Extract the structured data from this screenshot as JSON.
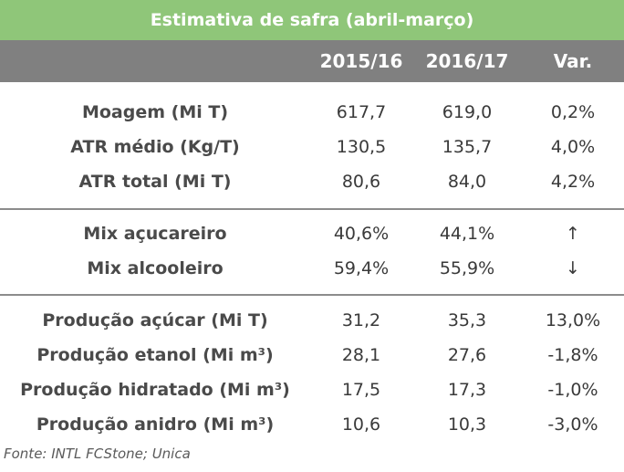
{
  "title": "Estimativa de safra (abril-março)",
  "header": {
    "label": "",
    "col1": "2015/16",
    "col2": "2016/17",
    "col3": "Var."
  },
  "groups": [
    {
      "rows": [
        {
          "label": "Moagem (Mi T)",
          "v1": "617,7",
          "v2": "619,0",
          "var": "0,2%"
        },
        {
          "label": "ATR médio (Kg/T)",
          "v1": "130,5",
          "v2": "135,7",
          "var": "4,0%"
        },
        {
          "label": "ATR total (Mi T)",
          "v1": "80,6",
          "v2": "84,0",
          "var": "4,2%"
        }
      ]
    },
    {
      "rows": [
        {
          "label": "Mix açucareiro",
          "v1": "40,6%",
          "v2": "44,1%",
          "var": "↑"
        },
        {
          "label": "Mix alcooleiro",
          "v1": "59,4%",
          "v2": "55,9%",
          "var": "↓"
        }
      ]
    },
    {
      "rows": [
        {
          "label": "Produção açúcar (Mi T)",
          "v1": "31,2",
          "v2": "35,3",
          "var": "13,0%"
        },
        {
          "label": "Produção etanol (Mi m³)",
          "v1": "28,1",
          "v2": "27,6",
          "var": "-1,8%"
        },
        {
          "label": "Produção hidratado (Mi m³)",
          "v1": "17,5",
          "v2": "17,3",
          "var": "-1,0%"
        },
        {
          "label": "Produção anidro (Mi m³)",
          "v1": "10,6",
          "v2": "10,3",
          "var": "-3,0%"
        }
      ]
    }
  ],
  "source": "Fonte: INTL FCStone; Unica"
}
